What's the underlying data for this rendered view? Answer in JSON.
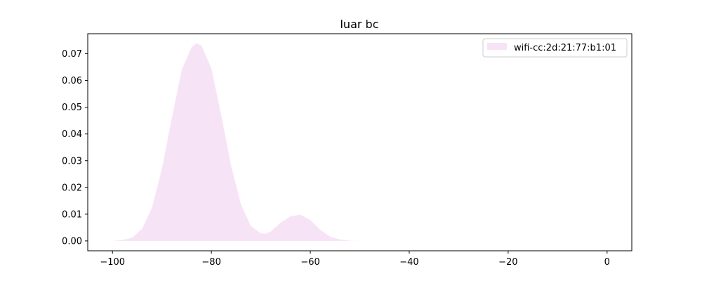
{
  "chart_data": {
    "type": "area",
    "title": "luar bc",
    "xlabel": "",
    "ylabel": "",
    "xlim": [
      -105,
      5
    ],
    "ylim": [
      -0.0037,
      0.0775
    ],
    "x_ticks": [
      -100,
      -80,
      -60,
      -40,
      -20,
      0
    ],
    "x_tick_labels": [
      "−100",
      "−80",
      "−60",
      "−40",
      "−20",
      "0"
    ],
    "y_ticks": [
      0.0,
      0.01,
      0.02,
      0.03,
      0.04,
      0.05,
      0.06,
      0.07
    ],
    "y_tick_labels": [
      "0.00",
      "0.01",
      "0.02",
      "0.03",
      "0.04",
      "0.05",
      "0.06",
      "0.07"
    ],
    "grid": false,
    "legend_position": "top-right",
    "series": [
      {
        "name": "wifi-cc:2d:21:77:b1:01",
        "color": "#f7e3f6",
        "x": [
          -100,
          -98,
          -96,
          -94,
          -92,
          -90,
          -88,
          -86,
          -84,
          -83,
          -82,
          -80,
          -78,
          -76,
          -74,
          -72,
          -70,
          -69,
          -68,
          -66,
          -64,
          -62,
          -60,
          -58,
          -56,
          -54,
          -52,
          -50
        ],
        "y": [
          0.0,
          0.0003,
          0.0012,
          0.0045,
          0.0125,
          0.027,
          0.046,
          0.064,
          0.0725,
          0.074,
          0.073,
          0.0645,
          0.047,
          0.028,
          0.0135,
          0.0055,
          0.0028,
          0.0027,
          0.0035,
          0.0068,
          0.0092,
          0.0098,
          0.0078,
          0.0042,
          0.0016,
          0.0005,
          0.0001,
          0.0
        ]
      }
    ]
  }
}
